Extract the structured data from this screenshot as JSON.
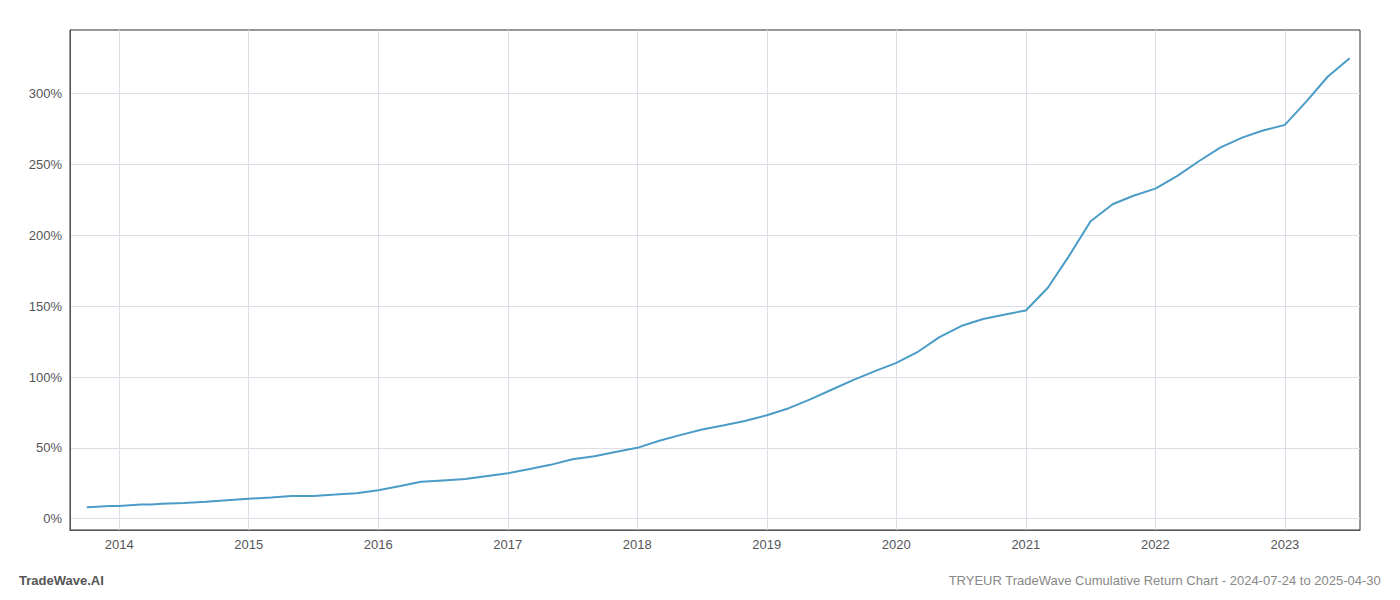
{
  "chart_data": {
    "type": "line",
    "title": "TRYEUR TradeWave Cumulative Return Chart - 2024-07-24 to 2025-04-30",
    "annotations": [
      "TradeWave.AI"
    ],
    "color": "#4a9cc7",
    "grid": true,
    "x": [
      2013.75,
      2013.83,
      2013.92,
      2014.0,
      2014.08,
      2014.17,
      2014.25,
      2014.33,
      2014.5,
      2014.67,
      2014.83,
      2015.0,
      2015.17,
      2015.33,
      2015.5,
      2015.67,
      2015.83,
      2016.0,
      2016.17,
      2016.33,
      2016.5,
      2016.67,
      2016.83,
      2017.0,
      2017.17,
      2017.33,
      2017.5,
      2017.67,
      2017.83,
      2018.0,
      2018.17,
      2018.33,
      2018.5,
      2018.67,
      2018.83,
      2019.0,
      2019.17,
      2019.33,
      2019.5,
      2019.67,
      2019.83,
      2020.0,
      2020.17,
      2020.33,
      2020.5,
      2020.67,
      2020.83,
      2021.0,
      2021.17,
      2021.33,
      2021.5,
      2021.67,
      2021.83,
      2022.0,
      2022.17,
      2022.33,
      2022.5,
      2022.67,
      2022.83,
      2023.0,
      2023.17,
      2023.33,
      2023.5
    ],
    "values": [
      8,
      8.5,
      9,
      9,
      9.5,
      10,
      10,
      10.5,
      11,
      12,
      13,
      14,
      15,
      16,
      16,
      17,
      18,
      20,
      23,
      26,
      27,
      28,
      30,
      32,
      35,
      38,
      42,
      44,
      47,
      50,
      55,
      59,
      63,
      66,
      69,
      73,
      78,
      84,
      91,
      98,
      104,
      110,
      118,
      128,
      136,
      141,
      144,
      147,
      163,
      185,
      210,
      222,
      228,
      233,
      242,
      252,
      262,
      269,
      274,
      278,
      295,
      312,
      325
    ],
    "xlim": [
      2013.62,
      2023.58
    ],
    "xticks": [
      2014,
      2015,
      2016,
      2017,
      2018,
      2019,
      2020,
      2021,
      2022,
      2023
    ],
    "ylim": [
      -8,
      345
    ],
    "yticks": [
      {
        "value": 0,
        "label": "0%"
      },
      {
        "value": 50,
        "label": "50%"
      },
      {
        "value": 100,
        "label": "100%"
      },
      {
        "value": 150,
        "label": "150%"
      },
      {
        "value": 200,
        "label": "200%"
      },
      {
        "value": 250,
        "label": "250%"
      },
      {
        "value": 300,
        "label": "300%"
      }
    ]
  }
}
